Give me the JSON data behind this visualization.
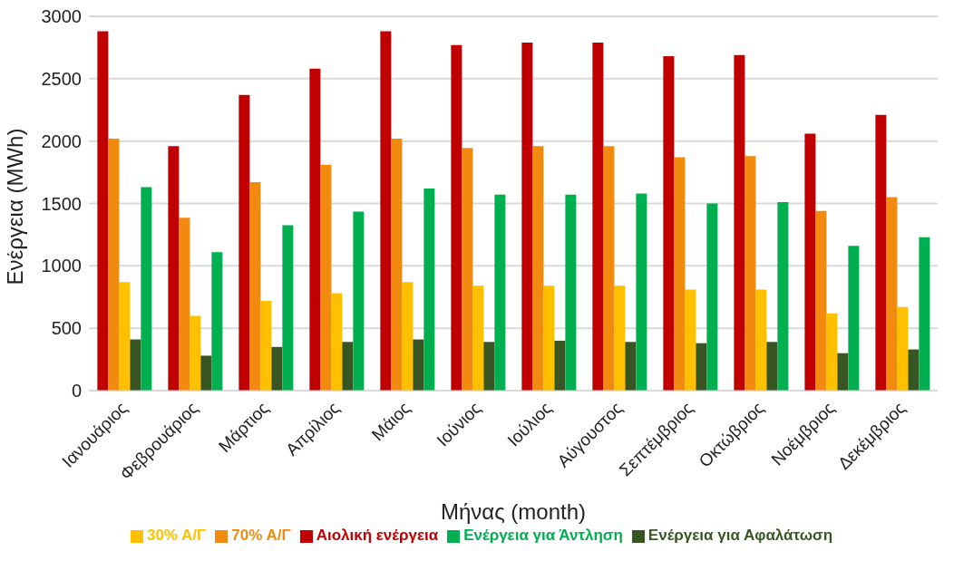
{
  "chart_data": {
    "type": "bar",
    "xlabel": "Μήνας (month)",
    "ylabel": "Ενέργεια (MWh)",
    "categories": [
      "Ιανουάριος",
      "Φεβρουάριος",
      "Μάρτιος",
      "Απρίλιος",
      "Μάιος",
      "Ιούνιος",
      "Ιούλιος",
      "Αύγουστος",
      "Σεπτέμβριος",
      "Οκτώβριος",
      "Νοέμβριος",
      "Δεκέμβριος"
    ],
    "series": [
      {
        "name": "Αιολική ενέργεια",
        "color": "#c00000",
        "values": [
          2880,
          1960,
          2370,
          2580,
          2880,
          2770,
          2790,
          2790,
          2680,
          2690,
          2060,
          2210
        ]
      },
      {
        "name": "70% Α/Γ",
        "color": "#f28a10",
        "values": [
          2020,
          1385,
          1670,
          1810,
          2020,
          1945,
          1960,
          1960,
          1870,
          1880,
          1440,
          1550
        ]
      },
      {
        "name": "30% Α/Γ",
        "color": "#ffc000",
        "values": [
          870,
          600,
          720,
          780,
          870,
          840,
          840,
          840,
          810,
          810,
          620,
          670
        ]
      },
      {
        "name": "Ενέργεια για Αφαλάτωση",
        "color": "#375623",
        "values": [
          410,
          280,
          350,
          390,
          410,
          390,
          400,
          390,
          380,
          390,
          300,
          330
        ]
      },
      {
        "name": "Ενέργεια για Άντληση",
        "color": "#00b050",
        "values": [
          1630,
          1110,
          1325,
          1435,
          1620,
          1570,
          1570,
          1580,
          1500,
          1510,
          1160,
          1230
        ]
      }
    ],
    "ylim": [
      0,
      3000
    ],
    "yticks": [
      0,
      500,
      1000,
      1500,
      2000,
      2500,
      3000
    ],
    "grid": "y",
    "legend": "bottom"
  }
}
